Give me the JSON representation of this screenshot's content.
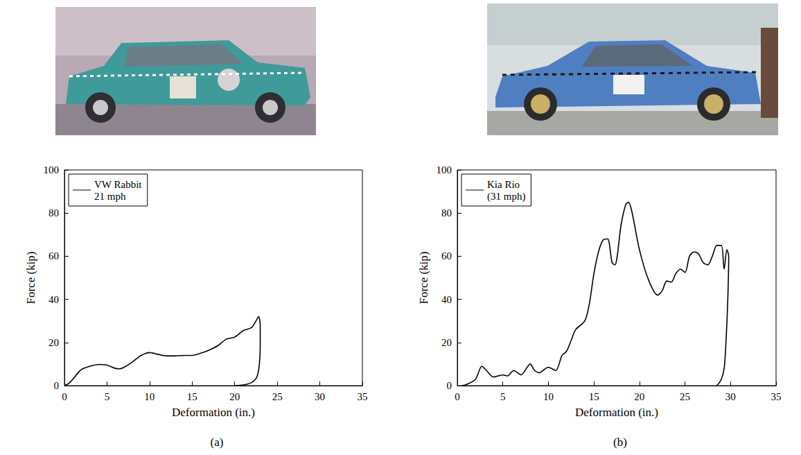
{
  "chart_data": [
    {
      "type": "line",
      "title": "(a)",
      "x_label": "Deformation (in.)",
      "y_label": "Force (kip)",
      "xlim": [
        0,
        35
      ],
      "xticks": [
        0,
        5,
        10,
        15,
        20,
        25,
        30,
        35
      ],
      "ylim": [
        0,
        100
      ],
      "yticks": [
        0,
        20,
        40,
        60,
        80,
        100
      ],
      "grid": false,
      "legend": "top-left",
      "series": [
        {
          "name": "VW Rabbit\n21 mph",
          "color": "#000000",
          "x": [
            0,
            0.5,
            1,
            1.5,
            2,
            3,
            4,
            5,
            6,
            6.5,
            7,
            8,
            9,
            10,
            11,
            12,
            13,
            14,
            15,
            16,
            17,
            18,
            19,
            20,
            21,
            22,
            22.5,
            22.8,
            23,
            23,
            22.9,
            22.6,
            22,
            21,
            20
          ],
          "values": [
            0,
            1,
            3,
            5.5,
            7.5,
            9,
            9.8,
            9.5,
            8,
            7.8,
            8.5,
            11,
            14,
            15.3,
            14.5,
            13.8,
            13.8,
            14,
            14,
            15,
            16.5,
            18.5,
            21.5,
            22.5,
            25.5,
            27,
            30,
            32,
            28,
            20,
            10,
            4,
            1.5,
            0.3,
            0
          ]
        }
      ]
    },
    {
      "type": "line",
      "title": "(b)",
      "x_label": "Deformation (in.)",
      "y_label": "Force (kip)",
      "xlim": [
        0,
        35
      ],
      "xticks": [
        0,
        5,
        10,
        15,
        20,
        25,
        30,
        35
      ],
      "ylim": [
        0,
        100
      ],
      "yticks": [
        0,
        20,
        40,
        60,
        80,
        100
      ],
      "grid": false,
      "legend": "top-left",
      "series": [
        {
          "name": "Kia Rio\n(31 mph)",
          "color": "#000000",
          "x": [
            0.5,
            1,
            2,
            2.7,
            3.2,
            4,
            5,
            5.5,
            6.2,
            7,
            8,
            8.5,
            9,
            10,
            10.8,
            11.5,
            12,
            12.5,
            13,
            14,
            14.5,
            15,
            15.5,
            16,
            16.5,
            17,
            17.3,
            18,
            18.5,
            18.8,
            19.2,
            20,
            21,
            22,
            22.5,
            23,
            23.5,
            24,
            24.5,
            25,
            25.5,
            26,
            26.5,
            27,
            27.5,
            28,
            28.5,
            29,
            29.3,
            29.6,
            29.8,
            29.7,
            29.5,
            29.3,
            29,
            28.7,
            28.5
          ],
          "values": [
            0,
            0.5,
            3,
            9,
            7,
            4,
            5,
            4.5,
            7,
            5,
            10,
            7,
            6,
            8.5,
            7,
            14,
            16,
            21,
            26,
            30,
            38,
            52,
            62,
            67.5,
            68,
            57,
            56,
            75,
            84,
            85,
            80,
            63,
            49,
            42,
            44,
            48.5,
            48,
            52,
            54,
            52.5,
            60,
            62,
            61,
            57,
            56,
            60,
            65,
            65,
            54,
            63,
            60,
            40,
            20,
            8,
            3,
            1,
            0
          ]
        }
      ]
    }
  ]
}
